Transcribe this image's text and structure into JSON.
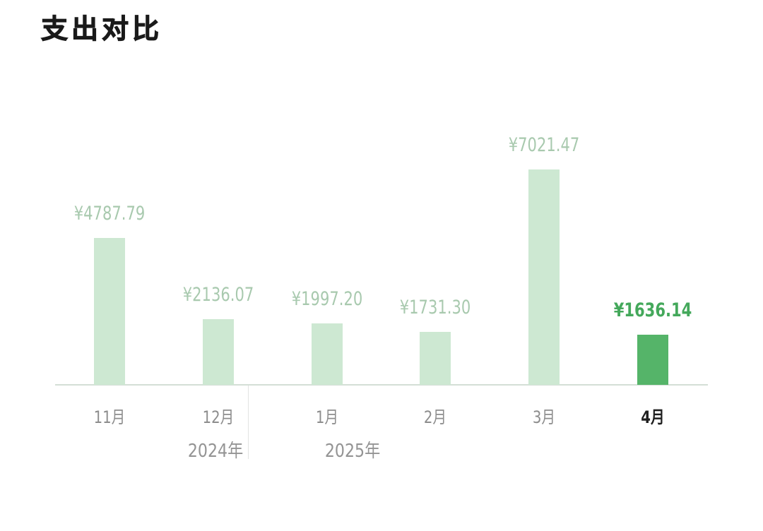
{
  "title": "支出对比",
  "colors": {
    "bar_light": "#cde8d2",
    "bar_active": "#55b469",
    "value_light": "#a8c9ae",
    "value_active": "#44a85b",
    "month_label": "#8d8d8d",
    "month_label_active": "#1f1f1f",
    "year_label": "#949494",
    "axis_line": "#d4ded6",
    "divider_line": "#e2e4e2",
    "title_color": "#1a1a1a"
  },
  "chart_data": {
    "type": "bar",
    "title": "支出对比",
    "categories": [
      "11月",
      "12月",
      "1月",
      "2月",
      "3月",
      "4月"
    ],
    "values": [
      4787.79,
      2136.07,
      1997.2,
      1731.3,
      7021.47,
      1636.14
    ],
    "value_labels": [
      "¥4787.79",
      "¥2136.07",
      "¥1997.20",
      "¥1731.30",
      "¥7021.47",
      "¥1636.14"
    ],
    "highlighted_index": 5,
    "year_groups": [
      {
        "label": "2024年",
        "months": [
          "11月",
          "12月"
        ]
      },
      {
        "label": "2025年",
        "months": [
          "1月",
          "2月",
          "3月",
          "4月"
        ]
      }
    ],
    "ylim": [
      0,
      7021.47
    ],
    "grid": false,
    "legend": false
  }
}
